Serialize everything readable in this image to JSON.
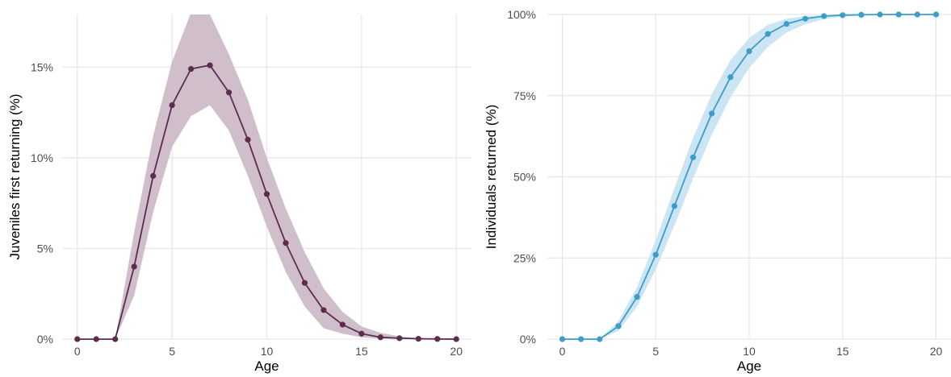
{
  "chart_data": [
    {
      "type": "line",
      "title": "",
      "xlabel": "Age",
      "ylabel": "Juveniles first returning (%)",
      "xlim": [
        -0.8,
        20.8
      ],
      "ylim": [
        0,
        17.9
      ],
      "x_ticks": [
        0,
        5,
        10,
        15,
        20
      ],
      "x_tick_labels": [
        "0",
        "5",
        "10",
        "15",
        "20"
      ],
      "y_ticks": [
        0,
        5,
        10,
        15
      ],
      "y_tick_labels": [
        "0%",
        "5%",
        "10%",
        "15%"
      ],
      "grid": true,
      "legend": "none",
      "line_color": "#5b2c4f",
      "ribbon_color": "#cdbcc8",
      "x": [
        0,
        1,
        2,
        3,
        4,
        5,
        6,
        7,
        8,
        9,
        10,
        11,
        12,
        13,
        14,
        15,
        16,
        17,
        18,
        19,
        20
      ],
      "values": [
        0,
        0,
        0,
        4.0,
        9.0,
        12.9,
        14.9,
        15.1,
        13.6,
        11.0,
        8.0,
        5.3,
        3.1,
        1.6,
        0.8,
        0.3,
        0.1,
        0.05,
        0.02,
        0.01,
        0
      ],
      "lower": [
        0,
        0,
        0,
        2.4,
        7.0,
        10.6,
        12.3,
        12.9,
        11.5,
        9.0,
        6.2,
        3.7,
        1.8,
        0.6,
        0.3,
        0.1,
        0.03,
        0.01,
        0,
        0,
        0
      ],
      "upper": [
        0,
        0,
        0,
        5.9,
        11.2,
        15.3,
        18.0,
        17.9,
        15.7,
        13.2,
        10.0,
        7.2,
        4.8,
        2.8,
        1.5,
        0.7,
        0.35,
        0.15,
        0.06,
        0.02,
        0.01
      ]
    },
    {
      "type": "line",
      "title": "",
      "xlabel": "Age",
      "ylabel": "Individuals returned (%)",
      "xlim": [
        -0.8,
        20.8
      ],
      "ylim": [
        0,
        100
      ],
      "x_ticks": [
        0,
        5,
        10,
        15,
        20
      ],
      "x_tick_labels": [
        "0",
        "5",
        "10",
        "15",
        "20"
      ],
      "y_ticks": [
        0,
        25,
        50,
        75,
        100
      ],
      "y_tick_labels": [
        "0%",
        "25%",
        "50%",
        "75%",
        "100%"
      ],
      "grid": true,
      "legend": "none",
      "line_color": "#3c9dc8",
      "ribbon_color": "#c9e4f3",
      "x": [
        0,
        1,
        2,
        3,
        4,
        5,
        6,
        7,
        8,
        9,
        10,
        11,
        12,
        13,
        14,
        15,
        16,
        17,
        18,
        19,
        20
      ],
      "values": [
        0,
        0,
        0,
        4.0,
        13.0,
        26.0,
        41.0,
        56.0,
        69.5,
        80.7,
        88.7,
        94.0,
        97.1,
        98.7,
        99.5,
        99.8,
        99.9,
        100,
        100,
        100,
        100
      ],
      "lower": [
        0,
        0,
        0,
        2.5,
        10.0,
        21.5,
        35.0,
        49.5,
        63.0,
        74.5,
        83.5,
        90.0,
        94.5,
        97.0,
        98.6,
        99.4,
        99.7,
        99.9,
        99.95,
        100,
        100
      ],
      "upper": [
        0,
        0,
        0,
        5.5,
        16.0,
        30.5,
        46.5,
        62.0,
        75.5,
        86.0,
        92.8,
        96.8,
        98.7,
        99.5,
        99.8,
        99.9,
        100,
        100,
        100,
        100,
        100
      ]
    }
  ]
}
